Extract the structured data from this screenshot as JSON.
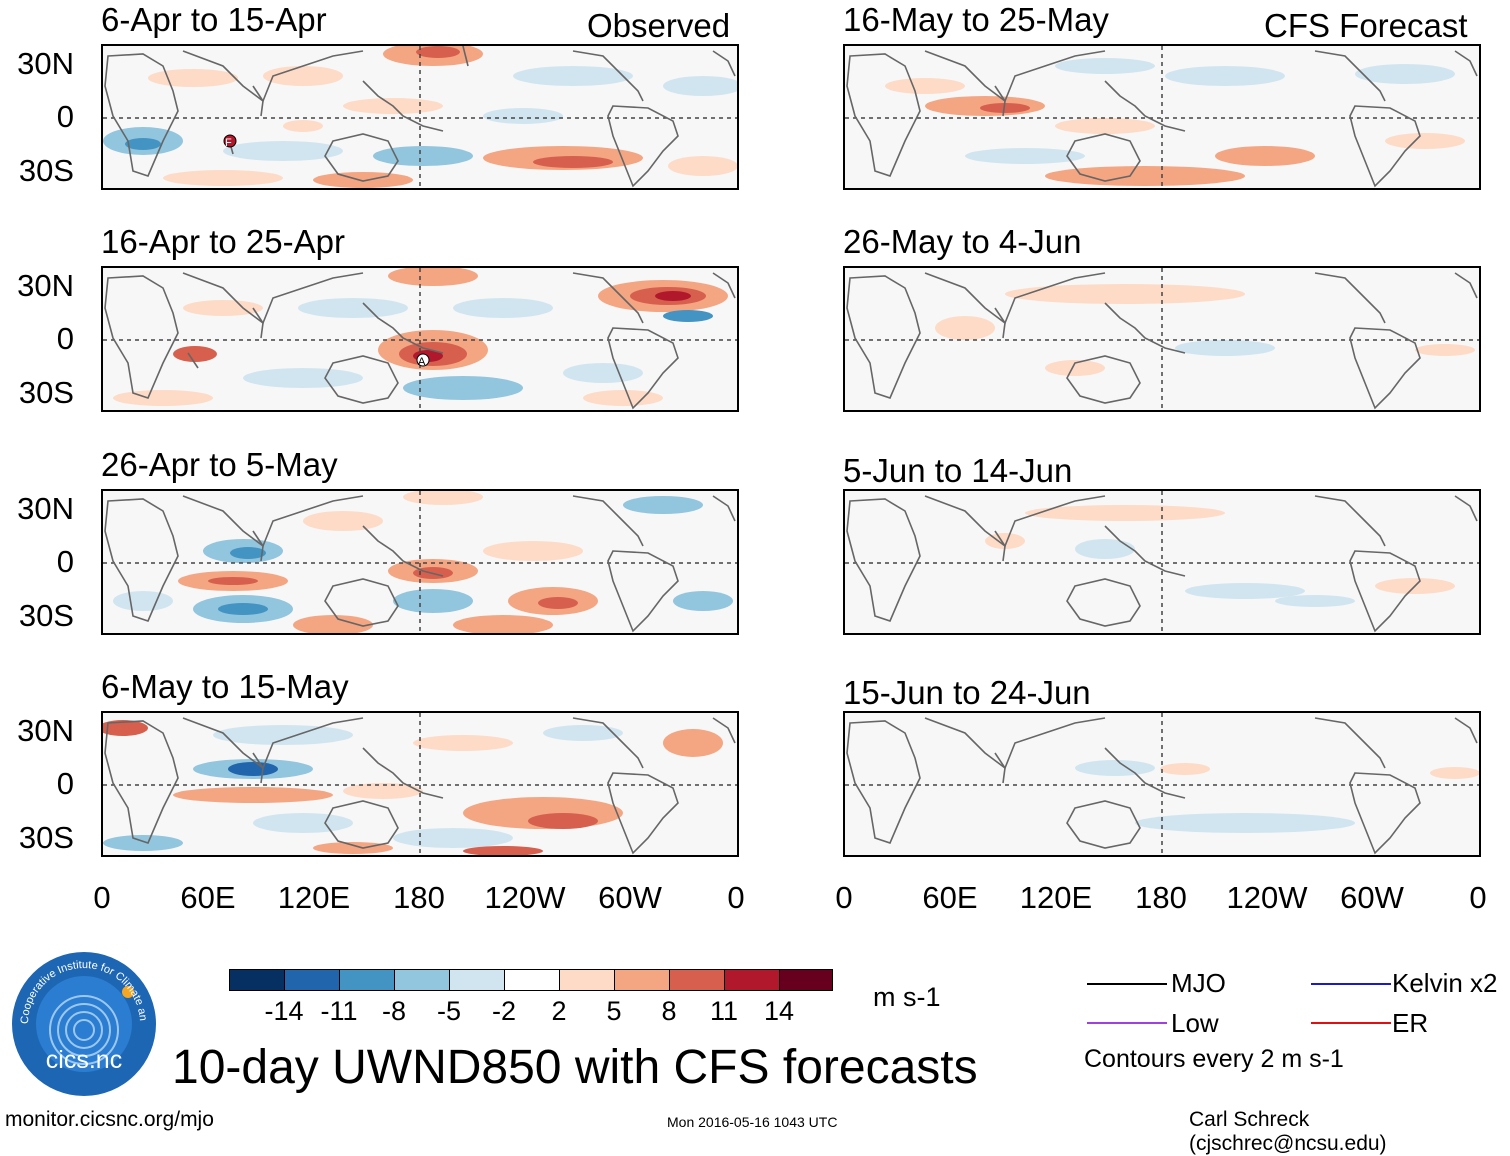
{
  "header": {
    "observed_label": "Observed",
    "forecast_label": "CFS Forecast"
  },
  "panels_observed": [
    {
      "title": "6-Apr to 15-Apr"
    },
    {
      "title": "16-Apr to 25-Apr"
    },
    {
      "title": "26-Apr to 5-May"
    },
    {
      "title": "6-May to 15-May"
    }
  ],
  "panels_forecast": [
    {
      "title": "16-May to 25-May"
    },
    {
      "title": "26-May to 4-Jun"
    },
    {
      "title": "5-Jun to 14-Jun"
    },
    {
      "title": "15-Jun to 24-Jun"
    }
  ],
  "lat_labels": [
    "30N",
    "0",
    "30S"
  ],
  "lon_labels": [
    "0",
    "60E",
    "120E",
    "180",
    "120W",
    "60W",
    "0"
  ],
  "colorbar": {
    "ticks": [
      "-14",
      "-11",
      "-8",
      "-5",
      "-2",
      "2",
      "5",
      "8",
      "11",
      "14"
    ],
    "colors": [
      "#053061",
      "#2166ac",
      "#4393c3",
      "#92c5de",
      "#d1e5f0",
      "#ffffff",
      "#fddbc7",
      "#f4a582",
      "#d6604d",
      "#b2182b",
      "#67001f"
    ],
    "units": "m s-1"
  },
  "legend": {
    "items": [
      {
        "label": "MJO",
        "color": "#000000"
      },
      {
        "label": "Kelvin x2",
        "color": "#1a1acc"
      },
      {
        "label": "Low",
        "color": "#a040e0"
      },
      {
        "label": "ER",
        "color": "#e01010"
      }
    ],
    "contour_note": "Contours every 2 m s-1"
  },
  "logo": {
    "ring_text": "Cooperative Institute for Climate and Satellites",
    "name": "cics.nc"
  },
  "footer": {
    "main_title": "10-day UWND850 with CFS forecasts",
    "url": "monitor.cicsnc.org/mjo",
    "timestamp": "Mon 2016-05-16 1043 UTC",
    "credit": "Carl Schreck (cjschrec@ncsu.edu)"
  },
  "storm_markers": [
    {
      "panel": "6-Apr to 15-Apr",
      "label": "F"
    },
    {
      "panel": "16-Apr to 25-Apr",
      "label": "A"
    }
  ]
}
